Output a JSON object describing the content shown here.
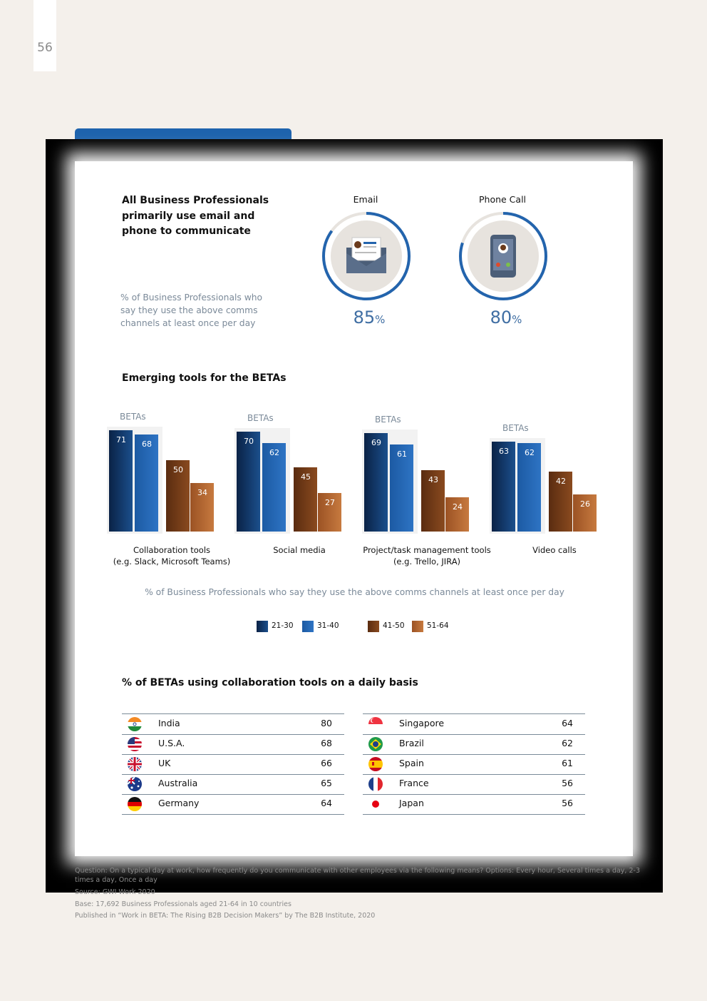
{
  "page_number": "56",
  "top": {
    "title": "All Business Professionals primarily use email and phone to communicate",
    "note": "% of Business Professionals who say they use the above comms channels at least once per day",
    "email_label": "Email",
    "email_value": "85",
    "email_unit": "%",
    "phone_label": "Phone Call",
    "phone_value": "80",
    "phone_unit": "%"
  },
  "emerging": {
    "title": "Emerging tools for the BETAs",
    "betas_label": "BETAs",
    "caption": "% of Business Professionals who say they use the above comms channels at least once per day"
  },
  "chart_data": {
    "type": "bar",
    "categories": [
      "Collaboration tools (e.g. Slack, Microsoft Teams)",
      "Social media",
      "Project/task management tools (e.g. Trello, JIRA)",
      "Video calls"
    ],
    "category_lines": [
      [
        "Collaboration tools",
        "(e.g. Slack, Microsoft Teams)"
      ],
      [
        "Social media"
      ],
      [
        "Project/task management tools",
        "(e.g. Trello, JIRA)"
      ],
      [
        "Video calls"
      ]
    ],
    "series": [
      {
        "name": "21-30",
        "values": [
          71,
          70,
          69,
          63
        ],
        "color": "#0b2a55"
      },
      {
        "name": "31-40",
        "values": [
          68,
          62,
          61,
          62
        ],
        "color": "#2364ad"
      },
      {
        "name": "41-50",
        "values": [
          50,
          45,
          43,
          42
        ],
        "color": "#6b3614"
      },
      {
        "name": "51-64",
        "values": [
          34,
          27,
          24,
          26
        ],
        "color": "#b4622c"
      }
    ]
  },
  "countries": {
    "title": "% of BETAs using collaboration tools on a daily basis",
    "left": [
      {
        "name": "India",
        "value": "80",
        "flag": "india-flag"
      },
      {
        "name": "U.S.A.",
        "value": "68",
        "flag": "usa-flag"
      },
      {
        "name": "UK",
        "value": "66",
        "flag": "uk-flag"
      },
      {
        "name": "Australia",
        "value": "65",
        "flag": "australia-flag"
      },
      {
        "name": "Germany",
        "value": "64",
        "flag": "germany-flag"
      }
    ],
    "right": [
      {
        "name": "Singapore",
        "value": "64",
        "flag": "singapore-flag"
      },
      {
        "name": "Brazil",
        "value": "62",
        "flag": "brazil-flag"
      },
      {
        "name": "Spain",
        "value": "61",
        "flag": "spain-flag"
      },
      {
        "name": "France",
        "value": "56",
        "flag": "france-flag"
      },
      {
        "name": "Japan",
        "value": "56",
        "flag": "japan-flag"
      }
    ]
  },
  "footer": {
    "question": "Question: On a typical day at work, how frequently do you communicate with other employees via the following means? Options: Every hour, Several times a day, 2-3 times a day, Once a day",
    "source": "Source: GWI Work 2020",
    "base": "Base: 17,692 Business Professionals aged 21-64 in 10 countries",
    "published": "Published in “Work in BETA: The Rising B2B Decision Makers” by The B2B Institute, 2020"
  }
}
